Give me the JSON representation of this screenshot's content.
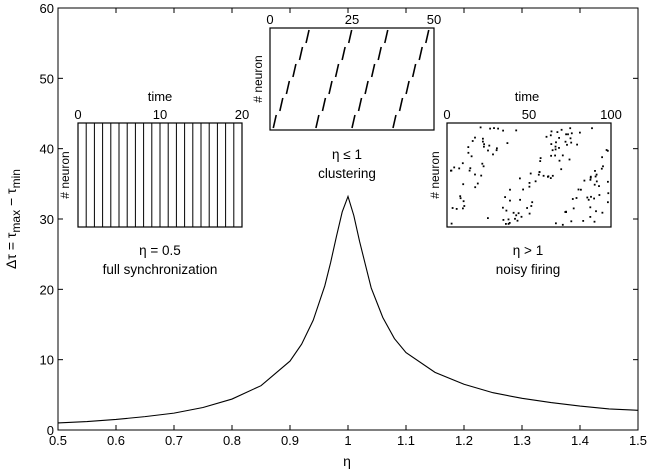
{
  "chart_data": {
    "type": "line",
    "xlabel": "η",
    "ylabel": {
      "prefix": "Δτ = τ",
      "sub1": "max",
      "mid": " − τ",
      "sub2": "min"
    },
    "xlim": [
      0.5,
      1.5
    ],
    "ylim": [
      0,
      60
    ],
    "xticks": [
      "0.5",
      "0.6",
      "0.7",
      "0.8",
      "0.9",
      "1",
      "1.1",
      "1.2",
      "1.3",
      "1.4",
      "1.5"
    ],
    "yticks": [
      "0",
      "10",
      "20",
      "30",
      "40",
      "50",
      "60"
    ],
    "grid": false,
    "series": [
      {
        "x": [
          0.5,
          0.55,
          0.6,
          0.65,
          0.7,
          0.75,
          0.8,
          0.85,
          0.9,
          0.92,
          0.94,
          0.96,
          0.97,
          0.98,
          0.99,
          1.0,
          1.01,
          1.02,
          1.03,
          1.04,
          1.06,
          1.08,
          1.1,
          1.15,
          1.2,
          1.25,
          1.3,
          1.35,
          1.4,
          1.45,
          1.5
        ],
        "y": [
          1.0,
          1.2,
          1.5,
          1.9,
          2.4,
          3.2,
          4.4,
          6.3,
          9.8,
          12.2,
          15.6,
          20.5,
          23.8,
          27.5,
          31.0,
          33.2,
          30.5,
          26.8,
          23.5,
          20.2,
          16.0,
          13.0,
          11.0,
          8.2,
          6.5,
          5.3,
          4.5,
          3.9,
          3.4,
          3.0,
          2.8
        ]
      }
    ],
    "insets": [
      {
        "id": "sync",
        "axis_title": "time",
        "xticks": [
          "0",
          "10",
          "20"
        ],
        "ylabel": "# neuron",
        "caption1": "η = 0.5",
        "caption2": "full synchronization"
      },
      {
        "id": "cluster",
        "axis_title": "",
        "xticks": [
          "0",
          "25",
          "50"
        ],
        "ylabel": "# neuron",
        "caption1": "η ≤ 1",
        "caption2": "clustering"
      },
      {
        "id": "noisy",
        "axis_title": "time",
        "xticks": [
          "0",
          "50",
          "100"
        ],
        "ylabel": "# neuron",
        "caption1": "η > 1",
        "caption2": "noisy firing"
      }
    ]
  }
}
